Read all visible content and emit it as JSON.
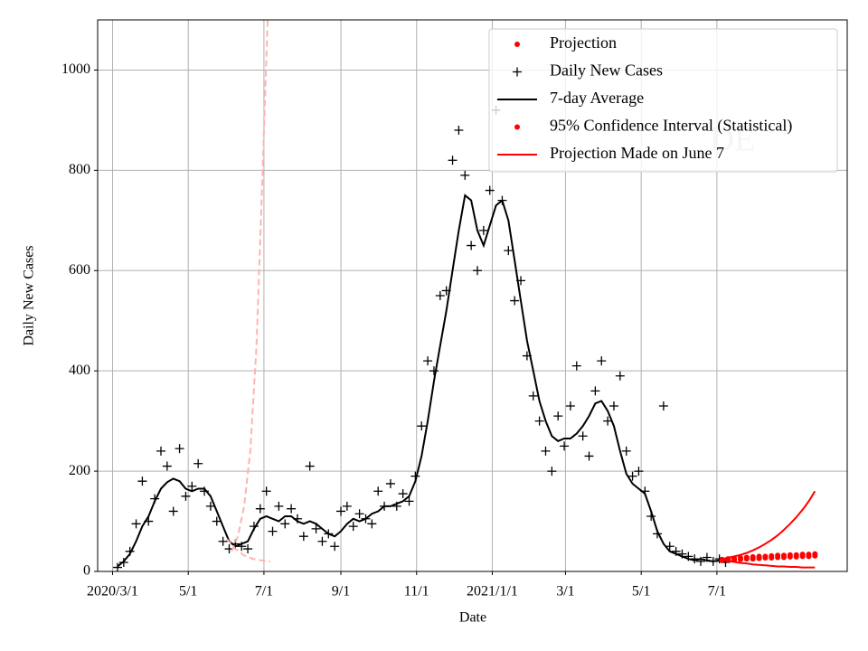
{
  "chart_data": {
    "type": "line",
    "x_label": "Date",
    "y_label": "Daily New Cases",
    "annotation": "DE",
    "xlim": [
      "2020-02-18",
      "2021-10-14"
    ],
    "xticks": [
      {
        "value": "2020-03-01",
        "label": "2020/3/1"
      },
      {
        "value": "2020-05-01",
        "label": "5/1"
      },
      {
        "value": "2020-07-01",
        "label": "7/1"
      },
      {
        "value": "2020-09-01",
        "label": "9/1"
      },
      {
        "value": "2020-11-01",
        "label": "11/1"
      },
      {
        "value": "2021-01-01",
        "label": "2021/1/1"
      },
      {
        "value": "2021-03-01",
        "label": "3/1"
      },
      {
        "value": "2021-05-01",
        "label": "5/1"
      },
      {
        "value": "2021-07-01",
        "label": "7/1"
      }
    ],
    "ylim": [
      0,
      1100
    ],
    "yticks": [
      0,
      200,
      400,
      600,
      800,
      1000
    ],
    "grid": true,
    "legend": "upper right",
    "series": [
      {
        "name": "Projection",
        "color": "#ff0000",
        "marker": "dot",
        "x": [
          "2021-07-05",
          "2021-07-10",
          "2021-07-15",
          "2021-07-20",
          "2021-07-25",
          "2021-07-30",
          "2021-08-04",
          "2021-08-09",
          "2021-08-14",
          "2021-08-19",
          "2021-08-24",
          "2021-08-29",
          "2021-09-03",
          "2021-09-08",
          "2021-09-13",
          "2021-09-18"
        ],
        "values": [
          24,
          25,
          26,
          27,
          28,
          29,
          30,
          30,
          31,
          32,
          32,
          33,
          33,
          34,
          34,
          35
        ]
      },
      {
        "name": "Daily New Cases",
        "color": "#000000",
        "marker": "plus",
        "x": [
          "2020-03-05",
          "2020-03-10",
          "2020-03-15",
          "2020-03-20",
          "2020-03-25",
          "2020-03-30",
          "2020-04-04",
          "2020-04-09",
          "2020-04-14",
          "2020-04-19",
          "2020-04-24",
          "2020-04-29",
          "2020-05-04",
          "2020-05-09",
          "2020-05-14",
          "2020-05-19",
          "2020-05-24",
          "2020-05-29",
          "2020-06-03",
          "2020-06-08",
          "2020-06-13",
          "2020-06-18",
          "2020-06-23",
          "2020-06-28",
          "2020-07-03",
          "2020-07-08",
          "2020-07-13",
          "2020-07-18",
          "2020-07-23",
          "2020-07-28",
          "2020-08-02",
          "2020-08-07",
          "2020-08-12",
          "2020-08-17",
          "2020-08-22",
          "2020-08-27",
          "2020-09-01",
          "2020-09-06",
          "2020-09-11",
          "2020-09-16",
          "2020-09-21",
          "2020-09-26",
          "2020-10-01",
          "2020-10-06",
          "2020-10-11",
          "2020-10-16",
          "2020-10-21",
          "2020-10-26",
          "2020-10-31",
          "2020-11-05",
          "2020-11-10",
          "2020-11-15",
          "2020-11-20",
          "2020-11-25",
          "2020-11-30",
          "2020-12-05",
          "2020-12-10",
          "2020-12-15",
          "2020-12-20",
          "2020-12-25",
          "2020-12-30",
          "2021-01-04",
          "2021-01-09",
          "2021-01-14",
          "2021-01-19",
          "2021-01-24",
          "2021-01-29",
          "2021-02-03",
          "2021-02-08",
          "2021-02-13",
          "2021-02-18",
          "2021-02-23",
          "2021-02-28",
          "2021-03-05",
          "2021-03-10",
          "2021-03-15",
          "2021-03-20",
          "2021-03-25",
          "2021-03-30",
          "2021-04-04",
          "2021-04-09",
          "2021-04-14",
          "2021-04-19",
          "2021-04-24",
          "2021-04-29",
          "2021-05-04",
          "2021-05-09",
          "2021-05-14",
          "2021-05-19",
          "2021-05-24",
          "2021-05-29",
          "2021-06-03",
          "2021-06-08",
          "2021-06-13",
          "2021-06-18",
          "2021-06-23",
          "2021-06-28",
          "2021-07-03",
          "2021-07-08"
        ],
        "values": [
          8,
          18,
          40,
          95,
          180,
          100,
          145,
          240,
          210,
          120,
          245,
          150,
          170,
          215,
          160,
          130,
          100,
          60,
          45,
          55,
          50,
          45,
          90,
          125,
          160,
          80,
          130,
          95,
          125,
          105,
          70,
          210,
          85,
          60,
          75,
          50,
          120,
          130,
          90,
          115,
          105,
          95,
          160,
          130,
          175,
          130,
          155,
          140,
          190,
          290,
          420,
          400,
          550,
          560,
          820,
          880,
          790,
          650,
          600,
          680,
          760,
          920,
          740,
          640,
          540,
          580,
          430,
          350,
          300,
          240,
          200,
          310,
          250,
          330,
          410,
          270,
          230,
          360,
          420,
          300,
          330,
          390,
          240,
          190,
          200,
          160,
          110,
          75,
          330,
          50,
          40,
          35,
          30,
          25,
          20,
          28,
          20,
          25,
          18
        ]
      },
      {
        "name": "7-day Average",
        "color": "#000000",
        "style": "solid",
        "x": [
          "2020-03-05",
          "2020-03-10",
          "2020-03-15",
          "2020-03-20",
          "2020-03-25",
          "2020-03-30",
          "2020-04-04",
          "2020-04-09",
          "2020-04-14",
          "2020-04-19",
          "2020-04-24",
          "2020-04-29",
          "2020-05-04",
          "2020-05-09",
          "2020-05-14",
          "2020-05-19",
          "2020-05-24",
          "2020-05-29",
          "2020-06-03",
          "2020-06-08",
          "2020-06-13",
          "2020-06-18",
          "2020-06-23",
          "2020-06-28",
          "2020-07-03",
          "2020-07-08",
          "2020-07-13",
          "2020-07-18",
          "2020-07-23",
          "2020-07-28",
          "2020-08-02",
          "2020-08-07",
          "2020-08-12",
          "2020-08-17",
          "2020-08-22",
          "2020-08-27",
          "2020-09-01",
          "2020-09-06",
          "2020-09-11",
          "2020-09-16",
          "2020-09-21",
          "2020-09-26",
          "2020-10-01",
          "2020-10-06",
          "2020-10-11",
          "2020-10-16",
          "2020-10-21",
          "2020-10-26",
          "2020-10-31",
          "2020-11-05",
          "2020-11-10",
          "2020-11-15",
          "2020-11-20",
          "2020-11-25",
          "2020-11-30",
          "2020-12-05",
          "2020-12-10",
          "2020-12-15",
          "2020-12-20",
          "2020-12-25",
          "2020-12-30",
          "2021-01-04",
          "2021-01-09",
          "2021-01-14",
          "2021-01-19",
          "2021-01-24",
          "2021-01-29",
          "2021-02-03",
          "2021-02-08",
          "2021-02-13",
          "2021-02-18",
          "2021-02-23",
          "2021-02-28",
          "2021-03-05",
          "2021-03-10",
          "2021-03-15",
          "2021-03-20",
          "2021-03-25",
          "2021-03-30",
          "2021-04-04",
          "2021-04-09",
          "2021-04-14",
          "2021-04-19",
          "2021-04-24",
          "2021-04-29",
          "2021-05-04",
          "2021-05-09",
          "2021-05-14",
          "2021-05-19",
          "2021-05-24",
          "2021-05-29",
          "2021-06-03",
          "2021-06-08",
          "2021-06-13",
          "2021-06-18",
          "2021-06-23",
          "2021-06-28",
          "2021-07-03",
          "2021-07-08"
        ],
        "values": [
          10,
          20,
          35,
          60,
          90,
          110,
          140,
          165,
          178,
          185,
          180,
          165,
          160,
          165,
          165,
          150,
          120,
          90,
          60,
          50,
          55,
          60,
          85,
          105,
          110,
          105,
          100,
          110,
          110,
          100,
          95,
          100,
          95,
          85,
          75,
          70,
          80,
          95,
          105,
          100,
          105,
          115,
          120,
          130,
          130,
          135,
          140,
          150,
          180,
          230,
          300,
          380,
          450,
          520,
          600,
          680,
          750,
          740,
          680,
          650,
          690,
          730,
          740,
          700,
          620,
          540,
          460,
          400,
          340,
          300,
          270,
          260,
          265,
          265,
          275,
          290,
          310,
          335,
          340,
          320,
          290,
          240,
          195,
          175,
          165,
          155,
          120,
          80,
          55,
          40,
          35,
          30,
          25,
          22,
          25,
          22,
          20,
          22,
          20
        ]
      },
      {
        "name": "95% Confidence Interval (Statistical)",
        "color": "#ff0000",
        "marker": "dot",
        "x": [
          "2021-07-05",
          "2021-07-10",
          "2021-07-15",
          "2021-07-20",
          "2021-07-25",
          "2021-07-30",
          "2021-08-04",
          "2021-08-09",
          "2021-08-14",
          "2021-08-19",
          "2021-08-24",
          "2021-08-29",
          "2021-09-03",
          "2021-09-08",
          "2021-09-13",
          "2021-09-18"
        ],
        "values": [
          22,
          23,
          23,
          24,
          25,
          25,
          26,
          27,
          27,
          28,
          28,
          29,
          29,
          30,
          30,
          31
        ]
      },
      {
        "name": "Projection Made on June 7",
        "color": "#ff0000",
        "style": "solid",
        "x": [
          "2021-07-05",
          "2021-07-10",
          "2021-07-15",
          "2021-07-20",
          "2021-07-25",
          "2021-07-30",
          "2021-08-04",
          "2021-08-09",
          "2021-08-14",
          "2021-08-19",
          "2021-08-24",
          "2021-08-29",
          "2021-09-03",
          "2021-09-08",
          "2021-09-13",
          "2021-09-18"
        ],
        "values": [
          25,
          27,
          30,
          33,
          37,
          42,
          48,
          55,
          63,
          72,
          83,
          95,
          108,
          123,
          140,
          160
        ]
      },
      {
        "color": "#ff0000",
        "style": "solid",
        "x": [
          "2021-07-05",
          "2021-07-10",
          "2021-07-15",
          "2021-07-20",
          "2021-07-25",
          "2021-07-30",
          "2021-08-04",
          "2021-08-09",
          "2021-08-14",
          "2021-08-19",
          "2021-08-24",
          "2021-08-29",
          "2021-09-03",
          "2021-09-08",
          "2021-09-13",
          "2021-09-18"
        ],
        "values": [
          23,
          21,
          19,
          17,
          16,
          14,
          13,
          12,
          11,
          10,
          10,
          9,
          9,
          8,
          8,
          8
        ]
      },
      {
        "color": "#ffb3b3",
        "style": "dashed",
        "x": [
          "2020-06-05",
          "2020-06-10",
          "2020-06-15",
          "2020-06-20",
          "2020-06-25",
          "2020-06-30",
          "2020-07-04"
        ],
        "values": [
          40,
          70,
          130,
          240,
          450,
          800,
          1100
        ]
      },
      {
        "color": "#ffb3b3",
        "style": "dashed",
        "x": [
          "2020-06-01",
          "2020-06-08",
          "2020-06-15",
          "2020-06-22",
          "2020-06-29",
          "2020-07-06"
        ],
        "values": [
          65,
          45,
          32,
          25,
          22,
          20
        ]
      }
    ]
  }
}
